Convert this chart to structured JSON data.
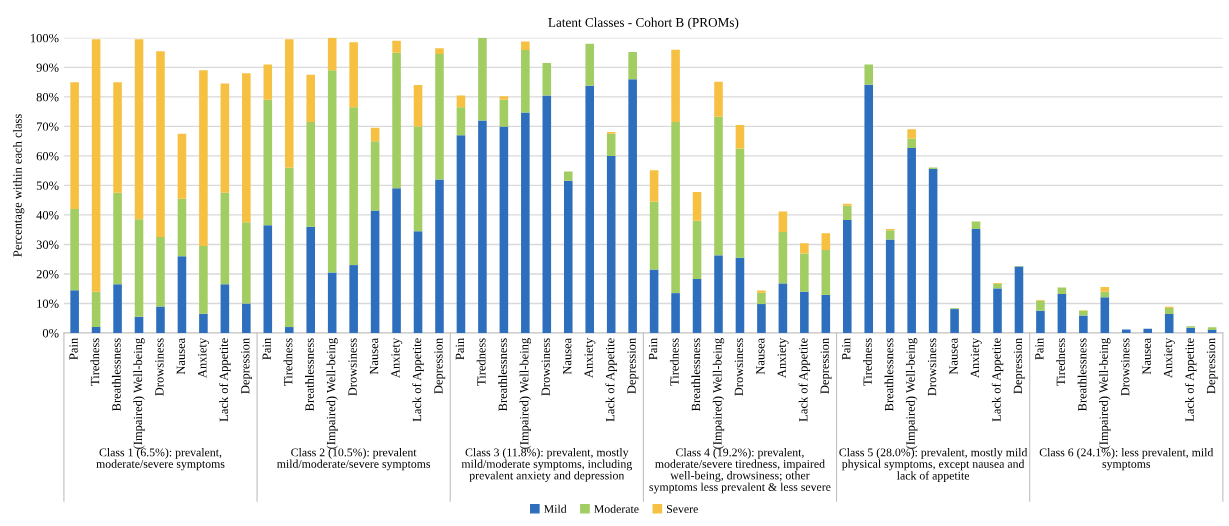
{
  "chart_data": {
    "type": "bar",
    "stacked": true,
    "title": "Latent Classes - Cohort B (PROMs)",
    "ylabel": "Percentage within each class",
    "categories": [
      "Pain",
      "Tiredness",
      "Breathlessness",
      "(Impaired) Well-being",
      "Drowsiness",
      "Nausea",
      "Anxiety",
      "Lack of Appetite",
      "Depression",
      "Pain",
      "Tiredness",
      "Breathlessness",
      "(Impaired) Well-being",
      "Drowsiness",
      "Nausea",
      "Anxiety",
      "Lack of Appetite",
      "Depression",
      "Pain",
      "Tiredness",
      "Breathlessness",
      "(Impaired) Well-being",
      "Drowsiness",
      "Nausea",
      "Anxiety",
      "Lack of Appetite",
      "Depression",
      "Pain",
      "Tiredness",
      "Breathlessness",
      "(Impaired) Well-being",
      "Drowsiness",
      "Nausea",
      "Anxiety",
      "Lack of Appetite",
      "Depression",
      "Pain",
      "Tiredness",
      "Breathlessness",
      "(Impaired) Well-being",
      "Drowsiness",
      "Nausea",
      "Anxiety",
      "Lack of Appetite",
      "Depression",
      "Pain",
      "Tiredness",
      "Breathlessness",
      "(Impaired) Well-being",
      "Drowsiness",
      "Nausea",
      "Anxiety",
      "Lack of Appetite",
      "Depression"
    ],
    "series": [
      {
        "name": "Mild",
        "color": "#2e6fbd",
        "values": [
          14.5,
          2,
          16.5,
          5.5,
          9,
          26,
          6.5,
          16.5,
          10,
          36.5,
          2,
          36,
          20.5,
          23,
          41.5,
          49,
          34.5,
          52,
          67,
          72,
          70,
          74.7,
          80.5,
          51.6,
          83.8,
          60,
          86,
          21.5,
          13.5,
          18.3,
          26.3,
          25.5,
          9.8,
          16.8,
          14,
          12.9,
          38.3,
          84.1,
          31.7,
          62.7,
          55.6,
          8.1,
          35.2,
          15.1,
          22.5,
          7.5,
          13.2,
          5.9,
          12.1,
          1.2,
          1.4,
          6.4,
          1.8,
          1
        ]
      },
      {
        "name": "Moderate",
        "color": "#a1cd63",
        "values": [
          27.5,
          12,
          31,
          33,
          23.5,
          19.5,
          23,
          31,
          27.5,
          42.5,
          54,
          35.5,
          68.5,
          53.5,
          23.5,
          46,
          35.5,
          42.5,
          9.5,
          28,
          9,
          21.2,
          11,
          3.1,
          14.2,
          7.5,
          9.2,
          23,
          58,
          19.7,
          47,
          37,
          3.8,
          17.4,
          12.9,
          15.2,
          4.8,
          6.9,
          3.1,
          3.2,
          0.5,
          0.3,
          2.6,
          1.5,
          0.2,
          3.4,
          2.2,
          1.6,
          1.9,
          null,
          0,
          2.1,
          0.5,
          0.9
        ]
      },
      {
        "name": "Severe",
        "color": "#f6c143",
        "values": [
          43,
          85.5,
          37.5,
          61,
          63,
          22,
          59.5,
          37,
          50.5,
          12,
          43.5,
          16,
          11,
          22,
          4.5,
          4,
          14,
          2,
          4,
          0,
          1.2,
          2.9,
          0,
          0,
          0,
          0.6,
          0,
          10.6,
          24.5,
          9.8,
          11.8,
          8,
          0.8,
          7,
          3.5,
          5.7,
          0.7,
          null,
          0.4,
          3.1,
          0,
          0,
          null,
          0.3,
          0,
          0.3,
          0,
          0.2,
          1.6,
          0,
          0,
          0.4,
          0,
          0
        ]
      }
    ],
    "annotations": [
      "Class 1 (6.5%): prevalent, moderate/severe symptoms",
      "Class 2 (10.5%): prevalent mild/moderate/severe symptoms",
      "Class 3 (11.8%): prevalent, mostly mild/moderate symptoms, including prevalent anxiety and depression",
      "Class 4 (19.2%): prevalent, moderate/severe tiredness, impaired well-being, drowsiness; other symptoms less prevalent & less severe",
      "Class 5 (28.0%): prevalent, mostly mild physical symptoms, except nausea and lack of appetite",
      "Class 6 (24.1%): less prevalent, mild symptoms"
    ],
    "ylim": [
      0,
      100
    ],
    "yticks": [
      {
        "value": 0,
        "label": "0%"
      },
      {
        "value": 10,
        "label": "10%"
      },
      {
        "value": 20,
        "label": "20%"
      },
      {
        "value": 30,
        "label": "30%"
      },
      {
        "value": 40,
        "label": "40%"
      },
      {
        "value": 50,
        "label": "50%"
      },
      {
        "value": 60,
        "label": "60%"
      },
      {
        "value": 70,
        "label": "70%"
      },
      {
        "value": 80,
        "label": "80%"
      },
      {
        "value": 90,
        "label": "90%"
      },
      {
        "value": 100,
        "label": "100%"
      }
    ],
    "grid": "y",
    "legend": "bottom"
  }
}
